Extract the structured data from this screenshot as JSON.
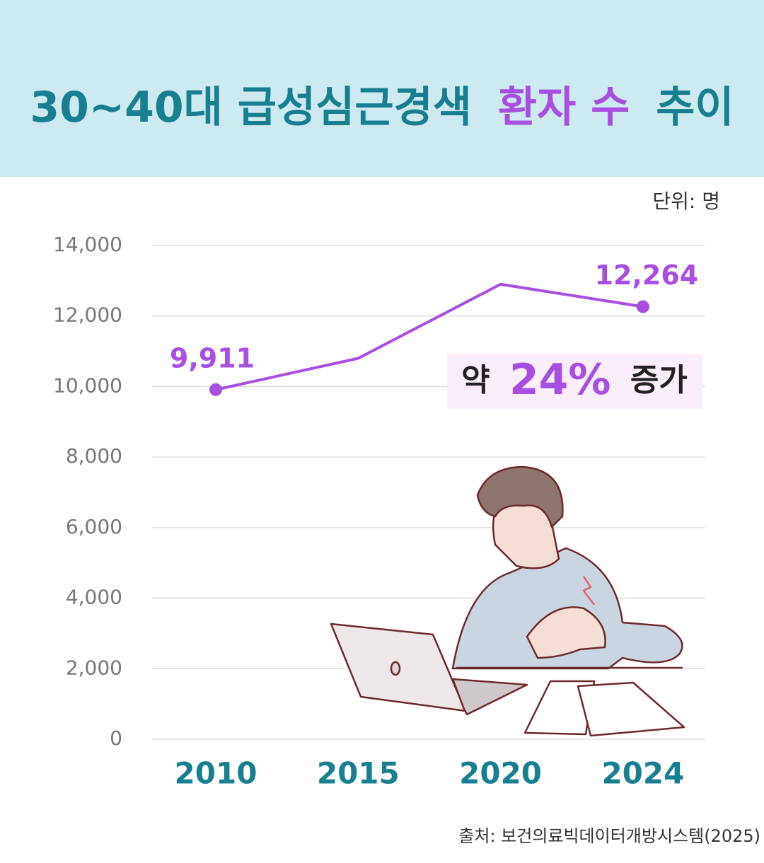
{
  "chart_data": {
    "type": "line",
    "title": [
      "30~40대 급성심근경색",
      "환자 수",
      "추이"
    ],
    "unit": "단위: 명",
    "categories": [
      "2010",
      "2015",
      "2020",
      "2024"
    ],
    "values": [
      9911,
      10800,
      12900,
      12264
    ],
    "value_labels": [
      "9,911",
      null,
      null,
      "12,264"
    ],
    "color": "#a64fe0",
    "ylim": [
      0,
      14000
    ],
    "yticks": [
      0,
      {
        "value": 2000,
        "label": "2,000"
      },
      {
        "value": 4000,
        "label": "4,000"
      },
      {
        "value": 6000,
        "label": "6,000"
      },
      {
        "value": 8000,
        "label": "8,000"
      },
      {
        "value": 10000,
        "label": "10,000"
      },
      {
        "value": 12000,
        "label": "12,000"
      },
      {
        "value": 14000,
        "label": "14,000"
      }
    ],
    "grid": true,
    "annotation": [
      "약",
      "24%",
      "증가"
    ],
    "source": "출처: 보건의료빅데이터개방시스템(2025)"
  }
}
